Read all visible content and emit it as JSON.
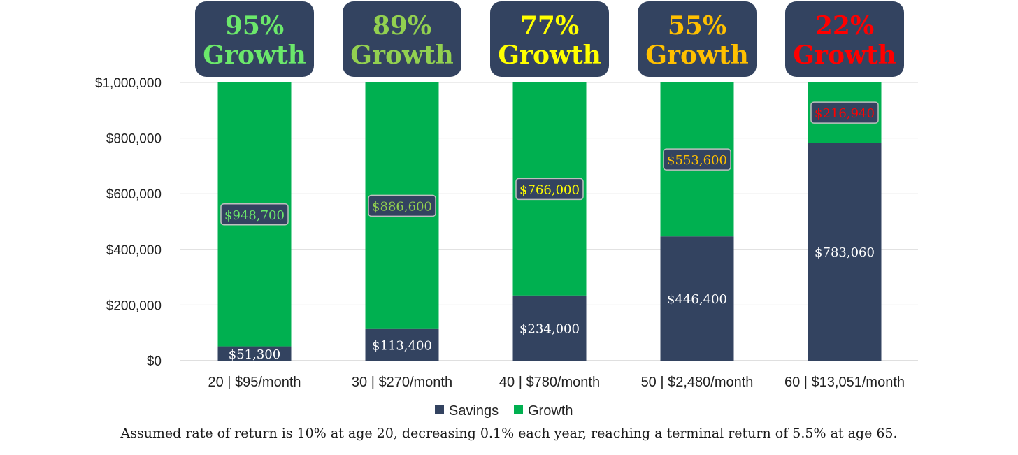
{
  "chart_data": {
    "type": "bar",
    "stacked": true,
    "categories": [
      "20 | $95/month",
      "30 | $270/month",
      "40 | $780/month",
      "50 | $2,480/month",
      "60 | $13,051/month"
    ],
    "series": [
      {
        "name": "Savings",
        "color": "#334360",
        "values": [
          51300,
          113400,
          234000,
          446400,
          783060
        ],
        "labels": [
          "$51,300",
          "$113,400",
          "$234,000",
          "$446,400",
          "$783,060"
        ]
      },
      {
        "name": "Growth",
        "color": "#00B050",
        "values": [
          948700,
          886600,
          766000,
          553600,
          216940
        ],
        "labels": [
          "$948,700",
          "$886,600",
          "$766,000",
          "$553,600",
          "$216,940"
        ]
      }
    ],
    "growth_callouts": [
      {
        "percent": "95%",
        "word": "Growth",
        "color": "#6BE86B"
      },
      {
        "percent": "89%",
        "word": "Growth",
        "color": "#92D050"
      },
      {
        "percent": "77%",
        "word": "Growth",
        "color": "#FFFF00"
      },
      {
        "percent": "55%",
        "word": "Growth",
        "color": "#FFC000"
      },
      {
        "percent": "22%",
        "word": "Growth",
        "color": "#FF0000"
      }
    ],
    "y_ticks": [
      {
        "value": 0,
        "label": "$0"
      },
      {
        "value": 200000,
        "label": "$200,000"
      },
      {
        "value": 400000,
        "label": "$400,000"
      },
      {
        "value": 600000,
        "label": "$600,000"
      },
      {
        "value": 800000,
        "label": "$800,000"
      },
      {
        "value": 1000000,
        "label": "$1,000,000"
      }
    ],
    "ylim": [
      0,
      1000000
    ],
    "grid": true,
    "legend_position": "bottom",
    "callout_box_color": "#334360",
    "footnote": "Assumed rate of return is 10% at age 20, decreasing 0.1% each year, reaching a terminal return of 5.5% at age 65."
  }
}
